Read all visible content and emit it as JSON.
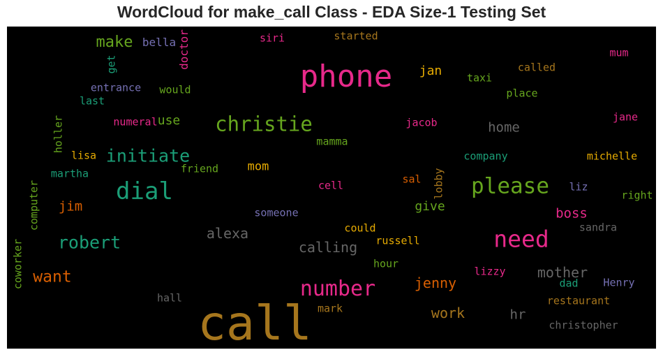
{
  "chart_data": {
    "type": "wordcloud",
    "title": "WordCloud for make_call Class - EDA Size-1 Testing Set",
    "background": "#000000",
    "colors": {
      "pink": "#e7298a",
      "green": "#66a61e",
      "teal": "#1b9e77",
      "orange": "#d95f02",
      "purple": "#7570b3",
      "gold": "#e6ab02",
      "brown": "#a6761d",
      "gray": "#666666"
    },
    "words": [
      {
        "text": "call",
        "color": "brown"
      },
      {
        "text": "phone",
        "color": "pink"
      },
      {
        "text": "christie",
        "color": "green"
      },
      {
        "text": "dial",
        "color": "teal"
      },
      {
        "text": "please",
        "color": "green"
      },
      {
        "text": "need",
        "color": "pink"
      },
      {
        "text": "number",
        "color": "pink"
      },
      {
        "text": "initiate",
        "color": "teal"
      },
      {
        "text": "robert",
        "color": "teal"
      },
      {
        "text": "make",
        "color": "green"
      },
      {
        "text": "want",
        "color": "orange"
      },
      {
        "text": "alexa",
        "color": "gray"
      },
      {
        "text": "calling",
        "color": "gray"
      },
      {
        "text": "jenny",
        "color": "orange"
      },
      {
        "text": "mother",
        "color": "gray"
      },
      {
        "text": "work",
        "color": "brown"
      },
      {
        "text": "boss",
        "color": "pink"
      },
      {
        "text": "home",
        "color": "gray"
      },
      {
        "text": "jim",
        "color": "orange"
      },
      {
        "text": "give",
        "color": "green"
      },
      {
        "text": "jan",
        "color": "gold"
      },
      {
        "text": "use",
        "color": "green"
      },
      {
        "text": "mom",
        "color": "gold"
      },
      {
        "text": "hr",
        "color": "gray"
      },
      {
        "text": "bella",
        "color": "purple"
      },
      {
        "text": "get",
        "color": "teal"
      },
      {
        "text": "doctor",
        "color": "pink"
      },
      {
        "text": "siri",
        "color": "pink"
      },
      {
        "text": "started",
        "color": "brown"
      },
      {
        "text": "mum",
        "color": "pink"
      },
      {
        "text": "called",
        "color": "brown"
      },
      {
        "text": "taxi",
        "color": "green"
      },
      {
        "text": "place",
        "color": "green"
      },
      {
        "text": "entrance",
        "color": "purple"
      },
      {
        "text": "would",
        "color": "green"
      },
      {
        "text": "last",
        "color": "teal"
      },
      {
        "text": "holler",
        "color": "green"
      },
      {
        "text": "numeral",
        "color": "pink"
      },
      {
        "text": "jacob",
        "color": "pink"
      },
      {
        "text": "jane",
        "color": "pink"
      },
      {
        "text": "mamma",
        "color": "green"
      },
      {
        "text": "lisa",
        "color": "gold"
      },
      {
        "text": "friend",
        "color": "green"
      },
      {
        "text": "company",
        "color": "teal"
      },
      {
        "text": "michelle",
        "color": "gold"
      },
      {
        "text": "martha",
        "color": "teal"
      },
      {
        "text": "computer",
        "color": "green"
      },
      {
        "text": "cell",
        "color": "pink"
      },
      {
        "text": "lobby",
        "color": "brown"
      },
      {
        "text": "sal",
        "color": "orange"
      },
      {
        "text": "liz",
        "color": "purple"
      },
      {
        "text": "right",
        "color": "green"
      },
      {
        "text": "someone",
        "color": "purple"
      },
      {
        "text": "sandra",
        "color": "gray"
      },
      {
        "text": "could",
        "color": "gold"
      },
      {
        "text": "russell",
        "color": "gold"
      },
      {
        "text": "coworker",
        "color": "green"
      },
      {
        "text": "hour",
        "color": "green"
      },
      {
        "text": "lizzy",
        "color": "pink"
      },
      {
        "text": "dad",
        "color": "teal"
      },
      {
        "text": "Henry",
        "color": "purple"
      },
      {
        "text": "hall",
        "color": "gray"
      },
      {
        "text": "mark",
        "color": "brown"
      },
      {
        "text": "restaurant",
        "color": "brown"
      },
      {
        "text": "christopher",
        "color": "gray"
      }
    ]
  }
}
